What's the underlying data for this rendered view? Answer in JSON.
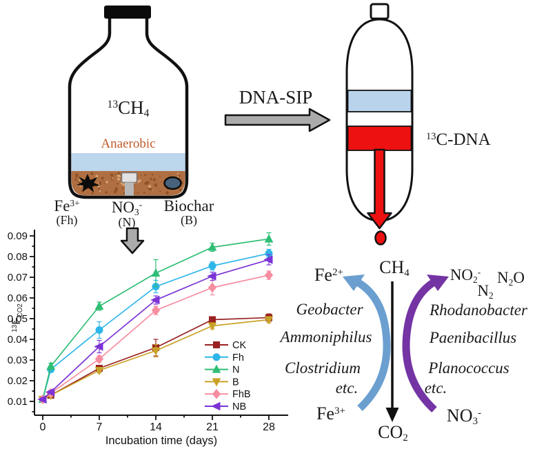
{
  "bottle": {
    "gas": "^{13}CH_{4}",
    "condition": "Anaerobic",
    "amendments": [
      {
        "name": "Fe^{3+}",
        "abbr": "(Fh)"
      },
      {
        "name": "NO_{3}^{-}",
        "abbr": "(N)"
      },
      {
        "name": "Biochar",
        "abbr": "(B)"
      }
    ]
  },
  "sip": {
    "arrow_label": "DNA-SIP",
    "fraction_label": "^{13}C-DNA"
  },
  "chart_data": {
    "type": "line",
    "x": [
      0,
      1,
      7,
      14,
      21,
      28
    ],
    "xlabel": "Incubation time (days)",
    "ylabel": "^{13}F_{CO2}",
    "xticks": [
      0,
      7,
      14,
      21,
      28
    ],
    "yticks": [
      0.01,
      0.02,
      0.03,
      0.04,
      0.05,
      0.06,
      0.07,
      0.08,
      0.09
    ],
    "xlim": [
      -1,
      30.2
    ],
    "ylim": [
      0.003,
      0.0923
    ],
    "grid": false,
    "legend_position": "inside-bottom-right",
    "series": [
      {
        "name": "CK",
        "color": "#992222",
        "marker": "square",
        "values": [
          0.011,
          0.013,
          0.026,
          0.036,
          0.0495,
          0.0505
        ],
        "errors": [
          0.0008,
          0.0008,
          0.0012,
          0.004,
          0.0012,
          0.0018
        ]
      },
      {
        "name": "Fh",
        "color": "#2EB6E9",
        "marker": "circle",
        "values": [
          0.011,
          0.0255,
          0.0445,
          0.0655,
          0.0755,
          0.0815
        ],
        "errors": [
          0.0008,
          0.0015,
          0.004,
          0.003,
          0.002,
          0.002
        ]
      },
      {
        "name": "N",
        "color": "#2FBE75",
        "marker": "triangle-up",
        "values": [
          0.011,
          0.027,
          0.056,
          0.072,
          0.0845,
          0.0885
        ],
        "errors": [
          0.0008,
          0.0015,
          0.002,
          0.0065,
          0.002,
          0.003
        ]
      },
      {
        "name": "B",
        "color": "#C8A227",
        "marker": "triangle-down",
        "values": [
          0.011,
          0.013,
          0.025,
          0.0345,
          0.0465,
          0.0495
        ],
        "errors": [
          0.0008,
          0.0008,
          0.0012,
          0.003,
          0.0015,
          0.0015
        ]
      },
      {
        "name": "FhB",
        "color": "#F78DA0",
        "marker": "diamond",
        "values": [
          0.011,
          0.014,
          0.0305,
          0.054,
          0.065,
          0.071
        ],
        "errors": [
          0.0008,
          0.0008,
          0.0015,
          0.002,
          0.0035,
          0.002
        ]
      },
      {
        "name": "NB",
        "color": "#7C33D6",
        "marker": "triangle-left",
        "values": [
          0.011,
          0.0145,
          0.0365,
          0.059,
          0.0705,
          0.0785
        ],
        "errors": [
          0.0008,
          0.0008,
          0.003,
          0.002,
          0.002,
          0.0025
        ]
      }
    ]
  },
  "cycle": {
    "substrate": "CH_{4}",
    "product": "CO_{2}",
    "iron": {
      "reduced": "Fe^{2+}",
      "oxidized": "Fe^{3+}",
      "microbes": [
        "Geobacter",
        "Ammoniphilus",
        "Clostridium",
        "etc."
      ]
    },
    "nitrogen": {
      "oxidized": "NO_{3}^{-}",
      "products": [
        "NO_{2}^{-}",
        "N_{2}O",
        "N_{2}"
      ],
      "microbes": [
        "Rhodanobacter",
        "Paenibacillus",
        "Planococcus",
        "etc."
      ]
    }
  },
  "colors": {
    "anaerobic_text": "#C05A2A",
    "water": "#BCD6EC",
    "soil": "#B06F42",
    "gradient_band_blue": "#B9D3ED",
    "dna_band_red": "#EE1111",
    "process_arrow_gray": "#ABABAB",
    "iron_arrow": "#6B9FD0",
    "nitrogen_arrow": "#7434A4"
  }
}
